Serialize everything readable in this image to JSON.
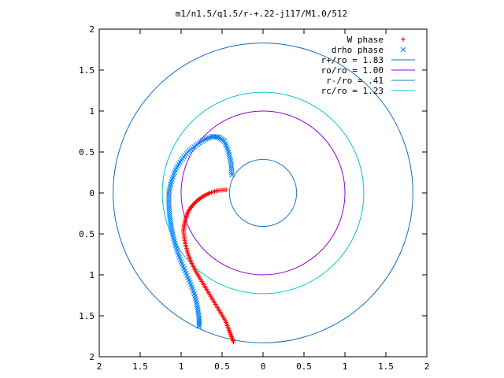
{
  "chart_data": {
    "type": "scatter",
    "title": "m1/n1.5/q1.5/r-+.22-j117/M1.0/512",
    "xlim": [
      -2,
      2
    ],
    "ylim": [
      -2,
      2
    ],
    "xticks": [
      -2,
      -1.5,
      -1,
      -0.5,
      0,
      0.5,
      1,
      1.5,
      2
    ],
    "yticks": [
      -2,
      -1.5,
      -1,
      -0.5,
      0,
      0.5,
      1,
      1.5,
      2
    ],
    "xtick_labels": [
      "2",
      "1.5",
      "1",
      "0.5",
      "0",
      "0.5",
      "1",
      "1.5",
      "2"
    ],
    "ytick_labels": [
      "2",
      "1.5",
      "1",
      "0.5",
      "0",
      "0.5",
      "1",
      "1.5",
      "2"
    ],
    "grid": false,
    "legend_position": "top-right",
    "series": [
      {
        "name": "W phase",
        "kind": "points",
        "marker": "+",
        "color": "#ff0000",
        "points": [
          [
            -0.45,
            0.04
          ],
          [
            -0.55,
            0.03
          ],
          [
            -0.65,
            0.0
          ],
          [
            -0.73,
            -0.04
          ],
          [
            -0.8,
            -0.09
          ],
          [
            -0.86,
            -0.15
          ],
          [
            -0.91,
            -0.22
          ],
          [
            -0.94,
            -0.3
          ],
          [
            -0.96,
            -0.38
          ],
          [
            -0.97,
            -0.46
          ],
          [
            -0.96,
            -0.56
          ],
          [
            -0.94,
            -0.66
          ],
          [
            -0.91,
            -0.76
          ],
          [
            -0.87,
            -0.86
          ],
          [
            -0.82,
            -0.96
          ],
          [
            -0.76,
            -1.06
          ],
          [
            -0.7,
            -1.16
          ],
          [
            -0.64,
            -1.26
          ],
          [
            -0.58,
            -1.36
          ],
          [
            -0.52,
            -1.46
          ],
          [
            -0.46,
            -1.56
          ],
          [
            -0.42,
            -1.66
          ],
          [
            -0.39,
            -1.74
          ],
          [
            -0.36,
            -1.82
          ]
        ]
      },
      {
        "name": "drho phase",
        "kind": "points",
        "marker": "x",
        "color": "#0080ff",
        "points": [
          [
            -0.38,
            0.22
          ],
          [
            -0.39,
            0.36
          ],
          [
            -0.42,
            0.5
          ],
          [
            -0.47,
            0.63
          ],
          [
            -0.54,
            0.68
          ],
          [
            -0.62,
            0.69
          ],
          [
            -0.72,
            0.65
          ],
          [
            -0.82,
            0.58
          ],
          [
            -0.92,
            0.5
          ],
          [
            -1.0,
            0.4
          ],
          [
            -1.07,
            0.28
          ],
          [
            -1.12,
            0.14
          ],
          [
            -1.15,
            0.0
          ],
          [
            -1.15,
            -0.14
          ],
          [
            -1.14,
            -0.28
          ],
          [
            -1.12,
            -0.42
          ],
          [
            -1.09,
            -0.56
          ],
          [
            -1.05,
            -0.7
          ],
          [
            -1.0,
            -0.84
          ],
          [
            -0.94,
            -0.98
          ],
          [
            -0.88,
            -1.12
          ],
          [
            -0.83,
            -1.26
          ],
          [
            -0.8,
            -1.4
          ],
          [
            -0.78,
            -1.53
          ],
          [
            -0.78,
            -1.63
          ]
        ]
      },
      {
        "name": "r+/ro = 1.83",
        "kind": "circle",
        "radius": 1.83,
        "color": "#0f6fc6"
      },
      {
        "name": "ro/ro = 1.00",
        "kind": "circle",
        "radius": 1.0,
        "color": "#9400d3"
      },
      {
        "name": "r-/ro = .41",
        "kind": "circle",
        "radius": 0.41,
        "color": "#1e78c8"
      },
      {
        "name": "rc/ro = 1.23",
        "kind": "circle",
        "radius": 1.23,
        "color": "#00c8c8"
      }
    ]
  }
}
